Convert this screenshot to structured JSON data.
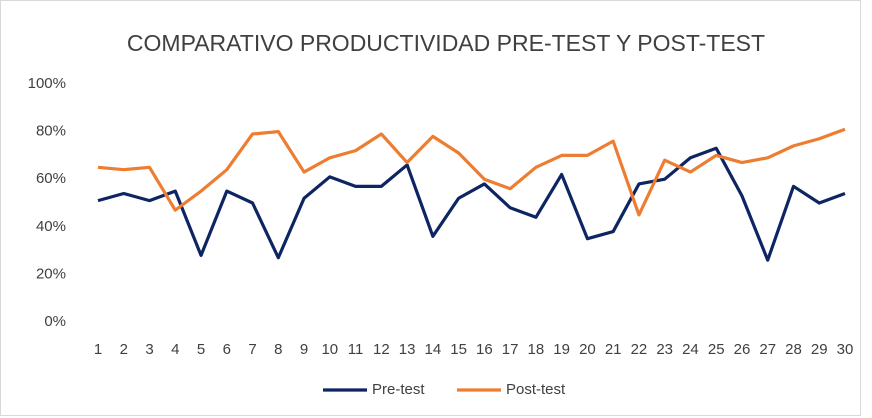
{
  "chart_data": {
    "type": "line",
    "title": "COMPARATIVO PRODUCTIVIDAD PRE-TEST Y POST-TEST",
    "categories": [
      "1",
      "2",
      "3",
      "4",
      "5",
      "6",
      "7",
      "8",
      "9",
      "10",
      "11",
      "12",
      "13",
      "14",
      "15",
      "16",
      "17",
      "18",
      "19",
      "20",
      "21",
      "22",
      "23",
      "24",
      "25",
      "26",
      "27",
      "28",
      "29",
      "30"
    ],
    "series": [
      {
        "name": "Pre-test",
        "color": "#0e2563",
        "values": [
          51,
          54,
          51,
          55,
          28,
          55,
          50,
          27,
          52,
          61,
          57,
          57,
          66,
          36,
          52,
          58,
          48,
          44,
          62,
          35,
          38,
          58,
          60,
          69,
          73,
          53,
          26,
          57,
          50,
          54
        ]
      },
      {
        "name": "Post-test",
        "color": "#ed7d31",
        "values": [
          65,
          64,
          65,
          47,
          55,
          64,
          79,
          80,
          63,
          69,
          72,
          79,
          67,
          78,
          71,
          60,
          56,
          65,
          70,
          70,
          76,
          45,
          68,
          63,
          70,
          67,
          69,
          74,
          77,
          81
        ]
      }
    ],
    "ylim": [
      0,
      100
    ],
    "yticks": [
      {
        "value": 0,
        "label": "0%"
      },
      {
        "value": 20,
        "label": "20%"
      },
      {
        "value": 40,
        "label": "40%"
      },
      {
        "value": 60,
        "label": "60%"
      },
      {
        "value": 80,
        "label": "80%"
      },
      {
        "value": 100,
        "label": "100%"
      }
    ],
    "grid": false,
    "legend": "bottom"
  }
}
